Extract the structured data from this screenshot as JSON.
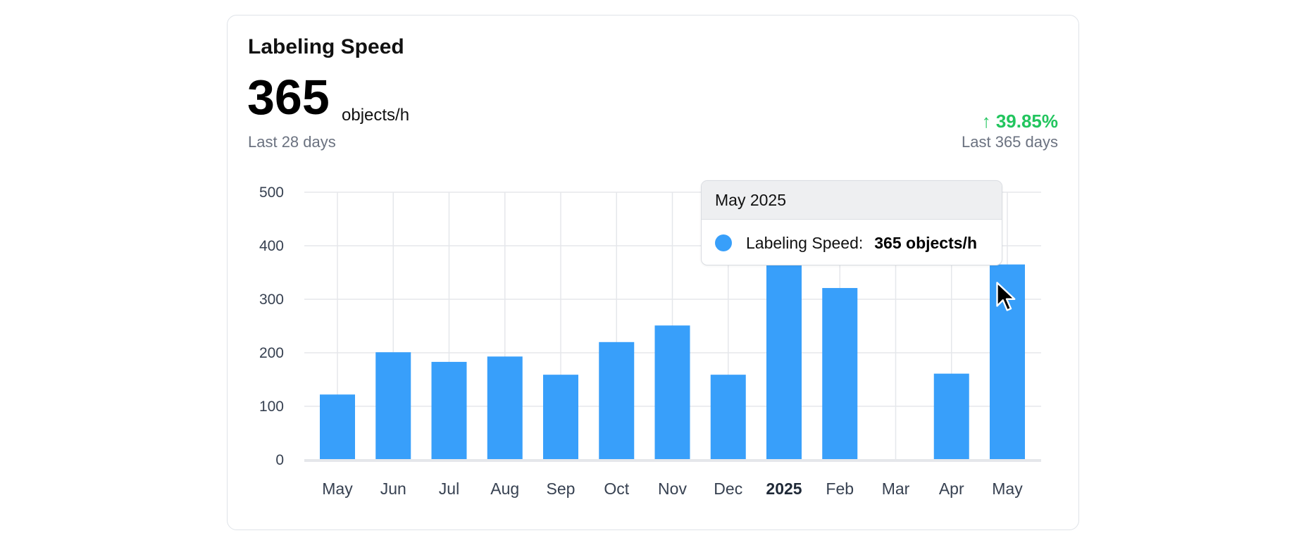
{
  "card": {
    "title": "Labeling Speed",
    "value": "365",
    "unit": "objects/h",
    "period": "Last 28 days",
    "change": "↑ 39.85%",
    "change_period": "Last 365 days"
  },
  "tooltip": {
    "header": "May 2025",
    "label": "Labeling Speed:",
    "value": "365 objects/h"
  },
  "colors": {
    "bar": "#389ffa",
    "grid": "#e5e7eb",
    "axis": "#e5e7eb",
    "positive": "#22c55e"
  },
  "chart_data": {
    "type": "bar",
    "categories": [
      "May",
      "Jun",
      "Jul",
      "Aug",
      "Sep",
      "Oct",
      "Nov",
      "Dec",
      "2025",
      "Feb",
      "Mar",
      "Apr",
      "May"
    ],
    "bold_categories": [
      "2025"
    ],
    "values": [
      122,
      201,
      183,
      193,
      159,
      220,
      251,
      159,
      369,
      321,
      0,
      161,
      365
    ],
    "title": "Labeling Speed",
    "xlabel": "",
    "ylabel": "",
    "ylim": [
      0,
      500
    ],
    "yticks": [
      0,
      100,
      200,
      300,
      400,
      500
    ],
    "grid": true,
    "legend": "none"
  }
}
